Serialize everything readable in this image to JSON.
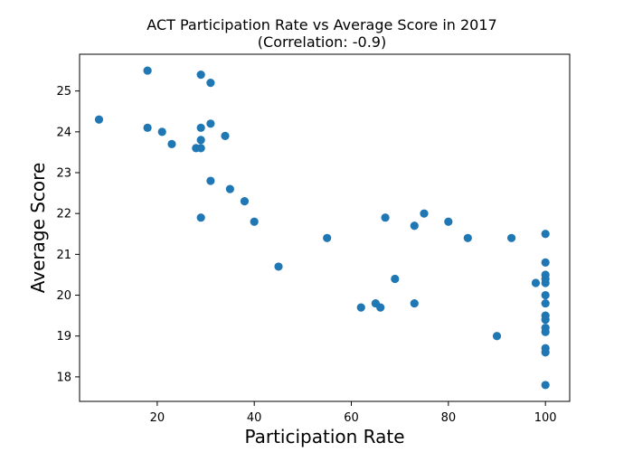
{
  "chart_data": {
    "type": "scatter",
    "title": "ACT Participation Rate vs Average Score in 2017",
    "subtitle": "(Correlation: -0.9)",
    "xlabel": "Participation Rate",
    "ylabel": "Average Score",
    "xlim": [
      4,
      105
    ],
    "ylim": [
      17.4,
      25.9
    ],
    "xticks": [
      20,
      40,
      60,
      80,
      100
    ],
    "yticks": [
      18,
      19,
      20,
      21,
      22,
      23,
      24,
      25
    ],
    "grid": false,
    "marker_color": "#1f77b4",
    "points": [
      {
        "x": 8,
        "y": 24.3
      },
      {
        "x": 18,
        "y": 25.5
      },
      {
        "x": 18,
        "y": 24.1
      },
      {
        "x": 21,
        "y": 24.0
      },
      {
        "x": 23,
        "y": 23.7
      },
      {
        "x": 28,
        "y": 23.6
      },
      {
        "x": 29,
        "y": 25.4
      },
      {
        "x": 29,
        "y": 24.1
      },
      {
        "x": 29,
        "y": 23.8
      },
      {
        "x": 29,
        "y": 23.6
      },
      {
        "x": 29,
        "y": 21.9
      },
      {
        "x": 31,
        "y": 25.2
      },
      {
        "x": 31,
        "y": 24.2
      },
      {
        "x": 31,
        "y": 22.8
      },
      {
        "x": 34,
        "y": 23.9
      },
      {
        "x": 35,
        "y": 22.6
      },
      {
        "x": 38,
        "y": 22.3
      },
      {
        "x": 40,
        "y": 21.8
      },
      {
        "x": 45,
        "y": 20.7
      },
      {
        "x": 55,
        "y": 21.4
      },
      {
        "x": 62,
        "y": 19.7
      },
      {
        "x": 65,
        "y": 19.8
      },
      {
        "x": 66,
        "y": 19.7
      },
      {
        "x": 67,
        "y": 21.9
      },
      {
        "x": 69,
        "y": 20.4
      },
      {
        "x": 73,
        "y": 21.7
      },
      {
        "x": 73,
        "y": 19.8
      },
      {
        "x": 75,
        "y": 22.0
      },
      {
        "x": 80,
        "y": 21.8
      },
      {
        "x": 84,
        "y": 21.4
      },
      {
        "x": 90,
        "y": 19.0
      },
      {
        "x": 93,
        "y": 21.4
      },
      {
        "x": 98,
        "y": 20.3
      },
      {
        "x": 100,
        "y": 21.5
      },
      {
        "x": 100,
        "y": 20.8
      },
      {
        "x": 100,
        "y": 20.5
      },
      {
        "x": 100,
        "y": 20.4
      },
      {
        "x": 100,
        "y": 20.3
      },
      {
        "x": 100,
        "y": 20.0
      },
      {
        "x": 100,
        "y": 19.8
      },
      {
        "x": 100,
        "y": 19.5
      },
      {
        "x": 100,
        "y": 19.4
      },
      {
        "x": 100,
        "y": 19.2
      },
      {
        "x": 100,
        "y": 19.1
      },
      {
        "x": 100,
        "y": 18.7
      },
      {
        "x": 100,
        "y": 18.6
      },
      {
        "x": 100,
        "y": 17.8
      }
    ]
  }
}
